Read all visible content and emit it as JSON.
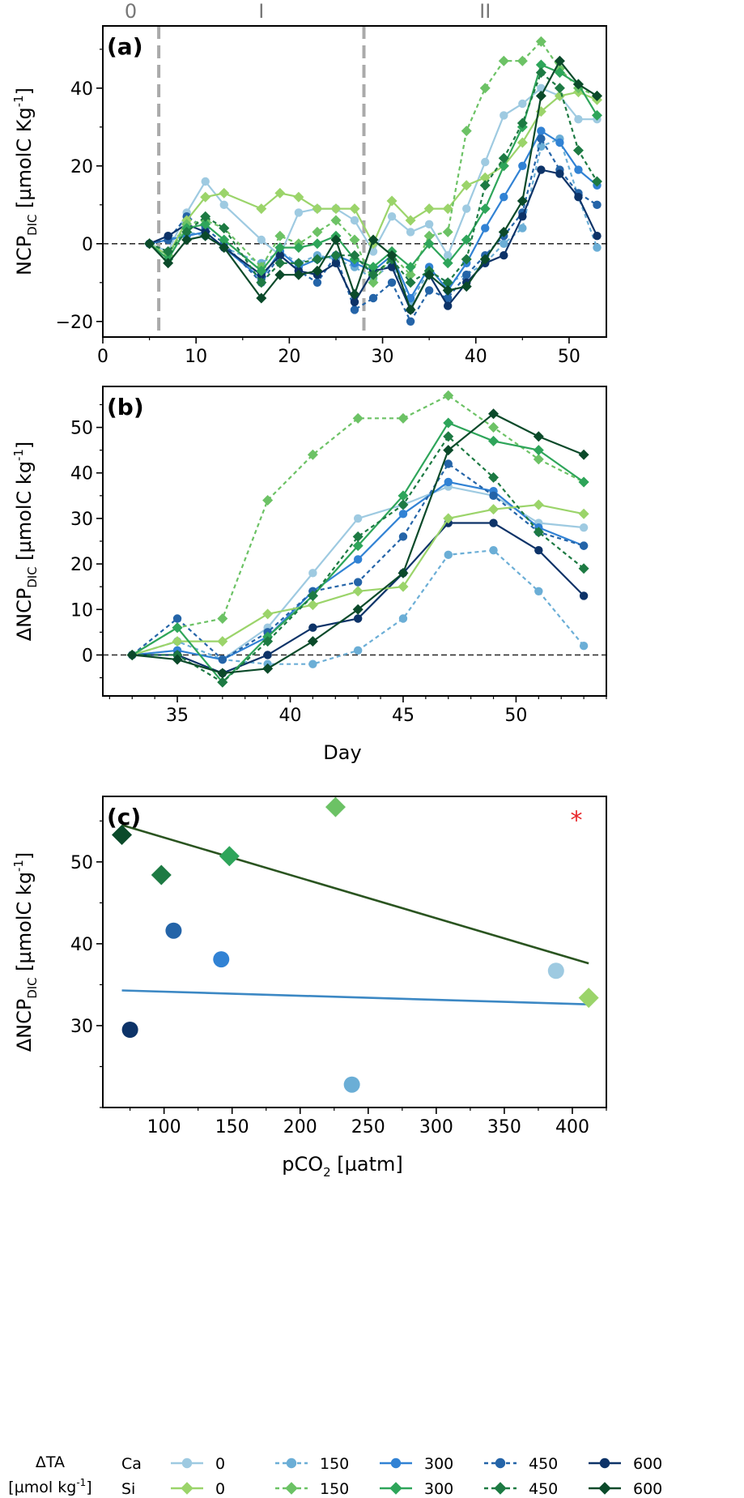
{
  "colors": {
    "ca_0": "#9ecae1",
    "ca_150": "#6baed6",
    "ca_300": "#3182d4",
    "ca_450": "#2464a8",
    "ca_600": "#0d3368",
    "si_0": "#9bd46a",
    "si_150": "#6cc265",
    "si_300": "#2ea55a",
    "si_450": "#1d7a43",
    "si_600": "#0b4a2a",
    "fit_ca": "#3c88c4",
    "fit_si": "#2a5420",
    "asterisk": "#e8262a",
    "phase_line": "#aaaaaa"
  },
  "chart_data": [
    {
      "id": "a",
      "type": "line",
      "panel_label": "(a)",
      "xlabel": "",
      "ylabel_main": "NCP",
      "ylabel_sub": "DIC",
      "ylabel_rest": " [µmolC Kg",
      "ylabel_sup": "-1",
      "ylabel_end": "]",
      "xlim": [
        0,
        54
      ],
      "ylim": [
        -24,
        56
      ],
      "xticks": [
        0,
        10,
        20,
        30,
        40,
        50
      ],
      "xtick_labels": [
        "0",
        "10",
        "20",
        "30",
        "40",
        "50"
      ],
      "yticks": [
        -20,
        0,
        20,
        40
      ],
      "ytick_labels": [
        "−20",
        "0",
        "20",
        "40"
      ],
      "phases": [
        {
          "label": "0",
          "x": 3
        },
        {
          "label": "I",
          "x": 17
        },
        {
          "label": "II",
          "x": 41
        }
      ],
      "phase_lines_x": [
        6,
        28
      ],
      "zero_line": 0,
      "x": [
        5,
        7,
        9,
        11,
        13,
        17,
        19,
        21,
        23,
        25,
        27,
        29,
        31,
        33,
        35,
        37,
        39,
        41,
        43,
        45,
        47,
        49,
        51,
        53
      ],
      "series": [
        {
          "key": "ca_0",
          "group": "Ca",
          "ta": "0",
          "marker": "circle",
          "dash": false,
          "values": [
            0,
            -2,
            8,
            16,
            10,
            1,
            -3,
            8,
            9,
            9,
            6,
            -2,
            7,
            3,
            5,
            -3,
            9,
            21,
            33,
            36,
            40,
            38,
            32,
            32
          ]
        },
        {
          "key": "ca_150",
          "group": "Ca",
          "ta": "150",
          "marker": "circle",
          "dash": true,
          "values": [
            0,
            1,
            3,
            2,
            -1,
            -5,
            -2,
            -5,
            -3,
            -4,
            -6,
            -9,
            -5,
            -15,
            -7,
            -10,
            -8,
            -5,
            0,
            4,
            25,
            27,
            12,
            -1
          ]
        },
        {
          "key": "ca_300",
          "group": "Ca",
          "ta": "300",
          "marker": "circle",
          "dash": false,
          "values": [
            0,
            1,
            2,
            3,
            -1,
            -9,
            -2,
            -6,
            -4,
            -3,
            -5,
            -7,
            -3,
            -14,
            -6,
            -12,
            -5,
            4,
            12,
            20,
            29,
            26,
            19,
            15
          ]
        },
        {
          "key": "ca_450",
          "group": "Ca",
          "ta": "450",
          "marker": "circle",
          "dash": true,
          "values": [
            0,
            1,
            7,
            4,
            0,
            -10,
            -3,
            -7,
            -10,
            -3,
            -17,
            -14,
            -10,
            -20,
            -12,
            -14,
            -8,
            -3,
            2,
            8,
            27,
            19,
            13,
            10
          ]
        },
        {
          "key": "ca_600",
          "group": "Ca",
          "ta": "600",
          "marker": "circle",
          "dash": false,
          "values": [
            0,
            2,
            5,
            3,
            -1,
            -8,
            -3,
            -7,
            -8,
            -5,
            -15,
            -7,
            -6,
            -17,
            -8,
            -16,
            -10,
            -5,
            -3,
            7,
            19,
            18,
            12,
            2
          ]
        },
        {
          "key": "si_0",
          "group": "Si",
          "ta": "0",
          "marker": "diamond",
          "dash": false,
          "values": [
            0,
            -3,
            6,
            12,
            13,
            9,
            13,
            12,
            9,
            9,
            9,
            0,
            11,
            6,
            9,
            9,
            15,
            17,
            20,
            26,
            34,
            38,
            39,
            37
          ]
        },
        {
          "key": "si_150",
          "group": "Si",
          "ta": "150",
          "marker": "diamond",
          "dash": true,
          "values": [
            0,
            -3,
            5,
            6,
            4,
            -6,
            2,
            0,
            3,
            6,
            1,
            -10,
            -3,
            -8,
            2,
            3,
            29,
            40,
            47,
            47,
            52,
            45,
            40,
            38
          ]
        },
        {
          "key": "si_300",
          "group": "Si",
          "ta": "300",
          "marker": "diamond",
          "dash": false,
          "values": [
            0,
            -4,
            4,
            5,
            1,
            -7,
            -1,
            -1,
            0,
            2,
            -4,
            -6,
            -2,
            -6,
            0,
            -5,
            1,
            9,
            20,
            30,
            46,
            44,
            41,
            33
          ]
        },
        {
          "key": "si_450",
          "group": "Si",
          "ta": "450",
          "marker": "diamond",
          "dash": true,
          "values": [
            0,
            -2,
            3,
            7,
            4,
            -10,
            -5,
            -5,
            -4,
            -3,
            -3,
            -8,
            -4,
            -10,
            -7,
            -10,
            -4,
            15,
            22,
            31,
            44,
            40,
            24,
            16
          ]
        },
        {
          "key": "si_600",
          "group": "Si",
          "ta": "600",
          "marker": "diamond",
          "dash": false,
          "values": [
            0,
            -5,
            1,
            2,
            -1,
            -14,
            -8,
            -8,
            -7,
            1,
            -13,
            1,
            -3,
            -17,
            -8,
            -12,
            -11,
            -4,
            3,
            11,
            38,
            47,
            41,
            38
          ]
        }
      ]
    },
    {
      "id": "b",
      "type": "line",
      "panel_label": "(b)",
      "xlabel": "Day",
      "ylabel_main": "ΔNCP",
      "ylabel_sub": "DIC",
      "ylabel_rest": " [µmolC kg",
      "ylabel_sup": "-1",
      "ylabel_end": "]",
      "xlim": [
        31.7,
        54
      ],
      "ylim": [
        -9,
        59
      ],
      "xticks": [
        35,
        40,
        45,
        50
      ],
      "xtick_labels": [
        "35",
        "40",
        "45",
        "50"
      ],
      "yticks": [
        0,
        10,
        20,
        30,
        40,
        50
      ],
      "ytick_labels": [
        "0",
        "10",
        "20",
        "30",
        "40",
        "50"
      ],
      "zero_line": 0,
      "x": [
        33,
        35,
        37,
        39,
        41,
        43,
        45,
        47,
        49,
        51,
        53
      ],
      "series": [
        {
          "key": "ca_0",
          "group": "Ca",
          "ta": "0",
          "marker": "circle",
          "dash": false,
          "values": [
            0,
            1,
            -1,
            6,
            18,
            30,
            33,
            37,
            35,
            29,
            28
          ]
        },
        {
          "key": "ca_150",
          "group": "Ca",
          "ta": "150",
          "marker": "circle",
          "dash": true,
          "values": [
            0,
            3,
            -1,
            -2,
            -2,
            1,
            8,
            22,
            23,
            14,
            2
          ]
        },
        {
          "key": "ca_300",
          "group": "Ca",
          "ta": "300",
          "marker": "circle",
          "dash": false,
          "values": [
            0,
            1,
            -1,
            4,
            14,
            21,
            31,
            38,
            36,
            28,
            24
          ]
        },
        {
          "key": "ca_450",
          "group": "Ca",
          "ta": "450",
          "marker": "circle",
          "dash": true,
          "values": [
            0,
            8,
            -1,
            5,
            14,
            16,
            26,
            42,
            35,
            27,
            24
          ]
        },
        {
          "key": "ca_600",
          "group": "Ca",
          "ta": "600",
          "marker": "circle",
          "dash": false,
          "values": [
            0,
            0,
            -4,
            0,
            6,
            8,
            18,
            29,
            29,
            23,
            13
          ]
        },
        {
          "key": "si_0",
          "group": "Si",
          "ta": "0",
          "marker": "diamond",
          "dash": false,
          "values": [
            0,
            3,
            3,
            9,
            11,
            14,
            15,
            30,
            32,
            33,
            31
          ]
        },
        {
          "key": "si_150",
          "group": "Si",
          "ta": "150",
          "marker": "diamond",
          "dash": true,
          "values": [
            0,
            6,
            8,
            34,
            44,
            52,
            52,
            57,
            50,
            43,
            38
          ]
        },
        {
          "key": "si_300",
          "group": "Si",
          "ta": "300",
          "marker": "diamond",
          "dash": false,
          "values": [
            0,
            6,
            -6,
            4,
            13,
            24,
            35,
            51,
            47,
            45,
            38
          ]
        },
        {
          "key": "si_450",
          "group": "Si",
          "ta": "450",
          "marker": "diamond",
          "dash": true,
          "values": [
            0,
            0,
            -6,
            3,
            13,
            26,
            33,
            48,
            39,
            27,
            19
          ]
        },
        {
          "key": "si_600",
          "group": "Si",
          "ta": "600",
          "marker": "diamond",
          "dash": false,
          "values": [
            0,
            -1,
            -4,
            -3,
            3,
            10,
            18,
            45,
            53,
            48,
            44
          ]
        }
      ]
    },
    {
      "id": "c",
      "type": "scatter",
      "panel_label": "(c)",
      "xlabel_main": "pCO",
      "xlabel_sub": "2",
      "xlabel_rest": " [µatm]",
      "ylabel_main": "ΔNCP",
      "ylabel_sub": "DIC",
      "ylabel_rest": " [µmolC kg",
      "ylabel_sup": "-1",
      "ylabel_end": "]",
      "xlim": [
        55,
        425
      ],
      "ylim": [
        20,
        58
      ],
      "xticks": [
        100,
        150,
        200,
        250,
        300,
        350,
        400
      ],
      "xtick_labels": [
        "100",
        "150",
        "200",
        "250",
        "300",
        "350",
        "400"
      ],
      "yticks": [
        30,
        40,
        50
      ],
      "ytick_labels": [
        "30",
        "40",
        "50"
      ],
      "annotation": {
        "text": "*",
        "x": 403,
        "y": 55.3
      },
      "points": [
        {
          "key": "ca_0",
          "marker": "circle",
          "x": 388,
          "y": 36.7
        },
        {
          "key": "ca_150",
          "marker": "circle",
          "x": 238,
          "y": 22.8
        },
        {
          "key": "ca_300",
          "marker": "circle",
          "x": 142,
          "y": 38.1
        },
        {
          "key": "ca_450",
          "marker": "circle",
          "x": 107,
          "y": 41.6
        },
        {
          "key": "ca_600",
          "marker": "circle",
          "x": 75,
          "y": 29.5
        },
        {
          "key": "si_0",
          "marker": "diamond",
          "x": 412,
          "y": 33.4
        },
        {
          "key": "si_150",
          "marker": "diamond",
          "x": 226,
          "y": 56.7
        },
        {
          "key": "si_300",
          "marker": "diamond",
          "x": 148,
          "y": 50.7
        },
        {
          "key": "si_450",
          "marker": "diamond",
          "x": 98,
          "y": 48.4
        },
        {
          "key": "si_600",
          "marker": "diamond",
          "x": 69,
          "y": 53.3
        }
      ],
      "fits": [
        {
          "key": "fit_ca",
          "x": [
            69,
            412
          ],
          "y": [
            34.3,
            32.6
          ]
        },
        {
          "key": "fit_si",
          "x": [
            69,
            412
          ],
          "y": [
            54.5,
            37.6
          ]
        }
      ]
    }
  ],
  "legend": {
    "title_line1": "ΔTA",
    "title_line2_main": "[µmol kg",
    "title_line2_sup": "-1",
    "title_line2_end": "]",
    "rows": [
      {
        "label": "Ca",
        "marker": "circle",
        "entries": [
          {
            "key": "ca_0",
            "text": "0",
            "dash": false
          },
          {
            "key": "ca_150",
            "text": "150",
            "dash": true
          },
          {
            "key": "ca_300",
            "text": "300",
            "dash": false
          },
          {
            "key": "ca_450",
            "text": "450",
            "dash": true
          },
          {
            "key": "ca_600",
            "text": "600",
            "dash": false
          }
        ]
      },
      {
        "label": "Si",
        "marker": "diamond",
        "entries": [
          {
            "key": "si_0",
            "text": "0",
            "dash": false
          },
          {
            "key": "si_150",
            "text": "150",
            "dash": true
          },
          {
            "key": "si_300",
            "text": "300",
            "dash": false
          },
          {
            "key": "si_450",
            "text": "450",
            "dash": true
          },
          {
            "key": "si_600",
            "text": "600",
            "dash": false
          }
        ]
      }
    ]
  }
}
